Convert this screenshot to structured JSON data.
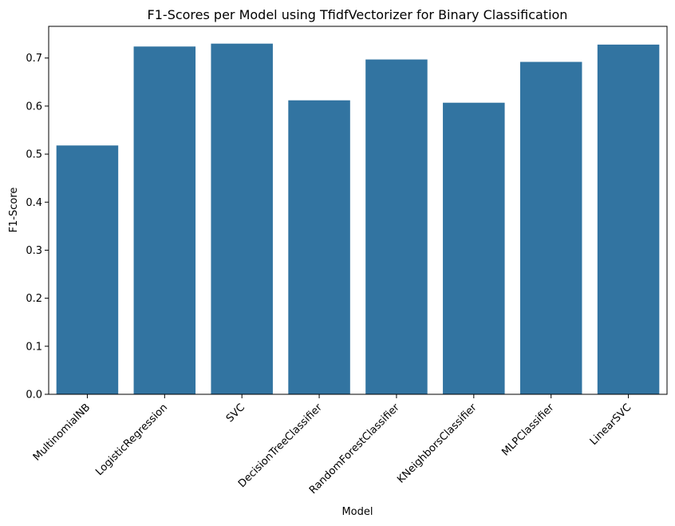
{
  "chart_data": {
    "type": "bar",
    "title": "F1-Scores per Model using TfidfVectorizer for Binary Classification",
    "xlabel": "Model",
    "ylabel": "F1-Score",
    "categories": [
      "MultinomialNB",
      "LogisticRegression",
      "SVC",
      "DecisionTreeClassifier",
      "RandomForestClassifier",
      "KNeighborsClassifier",
      "MLPClassifier",
      "LinearSVC"
    ],
    "values": [
      0.518,
      0.724,
      0.73,
      0.612,
      0.697,
      0.607,
      0.692,
      0.728
    ],
    "ylim": [
      0,
      0.766
    ],
    "yticks": [
      0.0,
      0.1,
      0.2,
      0.3,
      0.4,
      0.5,
      0.6,
      0.7
    ],
    "ytick_labels": [
      "0.0",
      "0.1",
      "0.2",
      "0.3",
      "0.4",
      "0.5",
      "0.6",
      "0.7"
    ],
    "bar_color": "#3274a1",
    "grid": false,
    "legend": "none"
  }
}
